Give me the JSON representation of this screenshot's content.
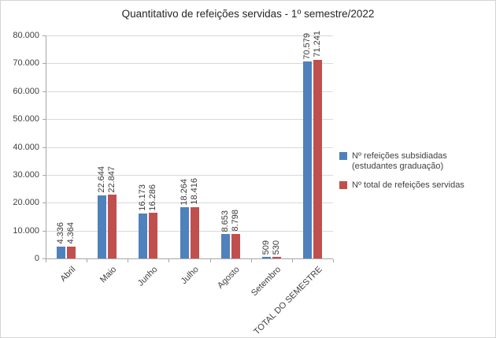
{
  "chart_data": {
    "type": "bar",
    "title": "Quantitativo de refeições servidas - 1º semestre/2022",
    "categories": [
      "Abril",
      "Maio",
      "Junho",
      "Julho",
      "Agosto",
      "Setembro",
      "TOTAL DO SEMESTRE"
    ],
    "series": [
      {
        "name": "Nº refeições subsidiadas (estudantes graduação)",
        "color": "#4F81BD",
        "values": [
          4336,
          22644,
          16173,
          18264,
          8653,
          509,
          70579
        ]
      },
      {
        "name": "Nº total de refeições servidas",
        "color": "#C0504D",
        "values": [
          4364,
          22847,
          16286,
          18416,
          8798,
          530,
          71241
        ]
      }
    ],
    "data_labels": [
      [
        "4.336",
        "22.644",
        "16.173",
        "18.264",
        "8.653",
        "509",
        "70.579"
      ],
      [
        "4.364",
        "22.847",
        "16.286",
        "18.416",
        "8.798",
        "530",
        "71.241"
      ]
    ],
    "ylim": [
      0,
      80000
    ],
    "ytick_interval": 10000,
    "y_tick_labels": [
      "0",
      "10.000",
      "20.000",
      "30.000",
      "40.000",
      "50.000",
      "60.000",
      "70.000",
      "80.000"
    ],
    "grid": true,
    "legend_position": "right",
    "x_label_rotation": 45,
    "data_label_rotation": 90
  }
}
